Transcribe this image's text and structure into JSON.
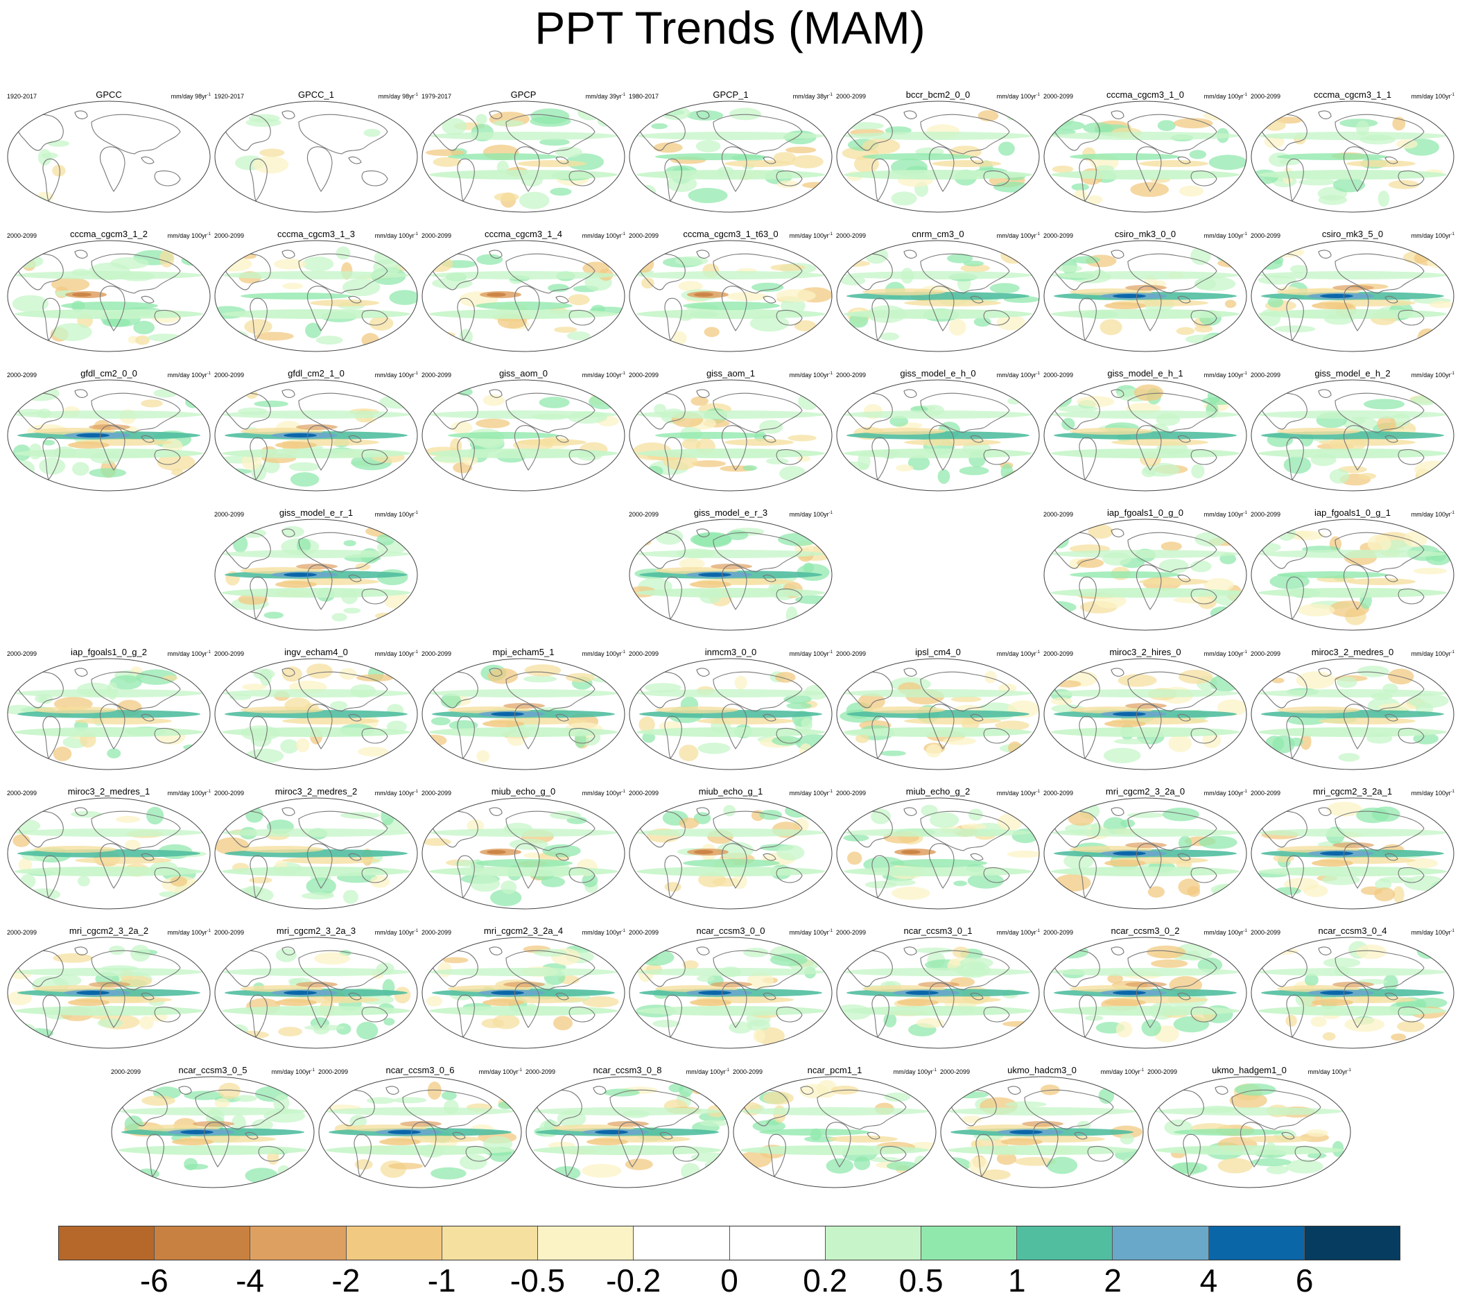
{
  "title": "PPT Trends (MAM)",
  "chart_data": {
    "type": "heatmap",
    "title": "PPT Trends (MAM)",
    "projection": "global map, ellipse",
    "colorbar": {
      "levels": [
        "-6",
        "-4",
        "-2",
        "-1",
        "-0.5",
        "-0.2",
        "0",
        "0.2",
        "0.5",
        "1",
        "2",
        "4",
        "6"
      ],
      "colors": [
        "#b5682a",
        "#c98141",
        "#dea061",
        "#f2c981",
        "#f5e0a0",
        "#fbf3c6",
        "#ffffff",
        "#ffffff",
        "#c7f5c9",
        "#91e8ad",
        "#51bea0",
        "#6aa8c9",
        "#0b66a8",
        "#063c60"
      ]
    },
    "panels": [
      {
        "name": "GPCC",
        "period": "1920-2017",
        "units": "mm/day 98yr",
        "style": "obs"
      },
      {
        "name": "GPCC_1",
        "period": "1920-2017",
        "units": "mm/day 98yr",
        "style": "obs"
      },
      {
        "name": "GPCP",
        "period": "1979-2017",
        "units": "mm/day 39yr",
        "style": "mixed"
      },
      {
        "name": "GPCP_1",
        "period": "1980-2017",
        "units": "mm/day 38yr",
        "style": "mixed"
      },
      {
        "name": "bccr_bcm2_0_0",
        "period": "2000-2099",
        "units": "mm/day 100yr",
        "style": "mixed"
      },
      {
        "name": "cccma_cgcm3_1_0",
        "period": "2000-2099",
        "units": "mm/day 100yr",
        "style": "mixed"
      },
      {
        "name": "cccma_cgcm3_1_1",
        "period": "2000-2099",
        "units": "mm/day 100yr",
        "style": "mixed"
      },
      {
        "name": "cccma_cgcm3_1_2",
        "period": "2000-2099",
        "units": "mm/day 100yr",
        "style": "dry"
      },
      {
        "name": "cccma_cgcm3_1_3",
        "period": "2000-2099",
        "units": "mm/day 100yr",
        "style": "mixed"
      },
      {
        "name": "cccma_cgcm3_1_4",
        "period": "2000-2099",
        "units": "mm/day 100yr",
        "style": "dry"
      },
      {
        "name": "cccma_cgcm3_1_t63_0",
        "period": "2000-2099",
        "units": "mm/day 100yr",
        "style": "dry"
      },
      {
        "name": "cnrm_cm3_0",
        "period": "2000-2099",
        "units": "mm/day 100yr",
        "style": "band"
      },
      {
        "name": "csiro_mk3_0_0",
        "period": "2000-2099",
        "units": "mm/day 100yr",
        "style": "strong"
      },
      {
        "name": "csiro_mk3_5_0",
        "period": "2000-2099",
        "units": "mm/day 100yr",
        "style": "strong"
      },
      {
        "name": "gfdl_cm2_0_0",
        "period": "2000-2099",
        "units": "mm/day 100yr",
        "style": "strong"
      },
      {
        "name": "gfdl_cm2_1_0",
        "period": "2000-2099",
        "units": "mm/day 100yr",
        "style": "strong"
      },
      {
        "name": "giss_aom_0",
        "period": "2000-2099",
        "units": "mm/day 100yr",
        "style": "mixed"
      },
      {
        "name": "giss_aom_1",
        "period": "2000-2099",
        "units": "mm/day 100yr",
        "style": "mixed"
      },
      {
        "name": "giss_model_e_h_0",
        "period": "2000-2099",
        "units": "mm/day 100yr",
        "style": "band"
      },
      {
        "name": "giss_model_e_h_1",
        "period": "2000-2099",
        "units": "mm/day 100yr",
        "style": "band"
      },
      {
        "name": "giss_model_e_h_2",
        "period": "2000-2099",
        "units": "mm/day 100yr",
        "style": "band"
      },
      {
        "name": "giss_model_e_r_1",
        "period": "2000-2099",
        "units": "mm/day 100yr",
        "style": "strong"
      },
      {
        "name": "giss_model_e_r_3",
        "period": "2000-2099",
        "units": "mm/day 100yr",
        "style": "strong"
      },
      {
        "name": "iap_fgoals1_0_g_0",
        "period": "2000-2099",
        "units": "mm/day 100yr",
        "style": "mixed"
      },
      {
        "name": "iap_fgoals1_0_g_1",
        "period": "2000-2099",
        "units": "mm/day 100yr",
        "style": "mixed"
      },
      {
        "name": "iap_fgoals1_0_g_2",
        "period": "2000-2099",
        "units": "mm/day 100yr",
        "style": "band"
      },
      {
        "name": "ingv_echam4_0",
        "period": "2000-2099",
        "units": "mm/day 100yr",
        "style": "band"
      },
      {
        "name": "mpi_echam5_1",
        "period": "2000-2099",
        "units": "mm/day 100yr",
        "style": "strong"
      },
      {
        "name": "inmcm3_0_0",
        "period": "2000-2099",
        "units": "mm/day 100yr",
        "style": "band"
      },
      {
        "name": "ipsl_cm4_0",
        "period": "2000-2099",
        "units": "mm/day 100yr",
        "style": "band"
      },
      {
        "name": "miroc3_2_hires_0",
        "period": "2000-2099",
        "units": "mm/day 100yr",
        "style": "strong"
      },
      {
        "name": "miroc3_2_medres_0",
        "period": "2000-2099",
        "units": "mm/day 100yr",
        "style": "band"
      },
      {
        "name": "miroc3_2_medres_1",
        "period": "2000-2099",
        "units": "mm/day 100yr",
        "style": "band"
      },
      {
        "name": "miroc3_2_medres_2",
        "period": "2000-2099",
        "units": "mm/day 100yr",
        "style": "band"
      },
      {
        "name": "miub_echo_g_0",
        "period": "2000-2099",
        "units": "mm/day 100yr",
        "style": "dry"
      },
      {
        "name": "miub_echo_g_1",
        "period": "2000-2099",
        "units": "mm/day 100yr",
        "style": "dry"
      },
      {
        "name": "miub_echo_g_2",
        "period": "2000-2099",
        "units": "mm/day 100yr",
        "style": "dry"
      },
      {
        "name": "mri_cgcm2_3_2a_0",
        "period": "2000-2099",
        "units": "mm/day 100yr",
        "style": "strong"
      },
      {
        "name": "mri_cgcm2_3_2a_1",
        "period": "2000-2099",
        "units": "mm/day 100yr",
        "style": "strong"
      },
      {
        "name": "mri_cgcm2_3_2a_2",
        "period": "2000-2099",
        "units": "mm/day 100yr",
        "style": "strong"
      },
      {
        "name": "mri_cgcm2_3_2a_3",
        "period": "2000-2099",
        "units": "mm/day 100yr",
        "style": "strong"
      },
      {
        "name": "mri_cgcm2_3_2a_4",
        "period": "2000-2099",
        "units": "mm/day 100yr",
        "style": "strong"
      },
      {
        "name": "ncar_ccsm3_0_0",
        "period": "2000-2099",
        "units": "mm/day 100yr",
        "style": "strong"
      },
      {
        "name": "ncar_ccsm3_0_1",
        "period": "2000-2099",
        "units": "mm/day 100yr",
        "style": "strong"
      },
      {
        "name": "ncar_ccsm3_0_2",
        "period": "2000-2099",
        "units": "mm/day 100yr",
        "style": "strong"
      },
      {
        "name": "ncar_ccsm3_0_4",
        "period": "2000-2099",
        "units": "mm/day 100yr",
        "style": "strong"
      },
      {
        "name": "ncar_ccsm3_0_5",
        "period": "2000-2099",
        "units": "mm/day 100yr",
        "style": "strong"
      },
      {
        "name": "ncar_ccsm3_0_6",
        "period": "2000-2099",
        "units": "mm/day 100yr",
        "style": "strong"
      },
      {
        "name": "ncar_ccsm3_0_8",
        "period": "2000-2099",
        "units": "mm/day 100yr",
        "style": "strong"
      },
      {
        "name": "ncar_pcm1_1",
        "period": "2000-2099",
        "units": "mm/day 100yr",
        "style": "mixed"
      },
      {
        "name": "ukmo_hadcm3_0",
        "period": "2000-2099",
        "units": "mm/day 100yr",
        "style": "strong"
      },
      {
        "name": "ukmo_hadgem1_0",
        "period": "2000-2099",
        "units": "mm/day 100yr",
        "style": "mixed"
      }
    ]
  }
}
